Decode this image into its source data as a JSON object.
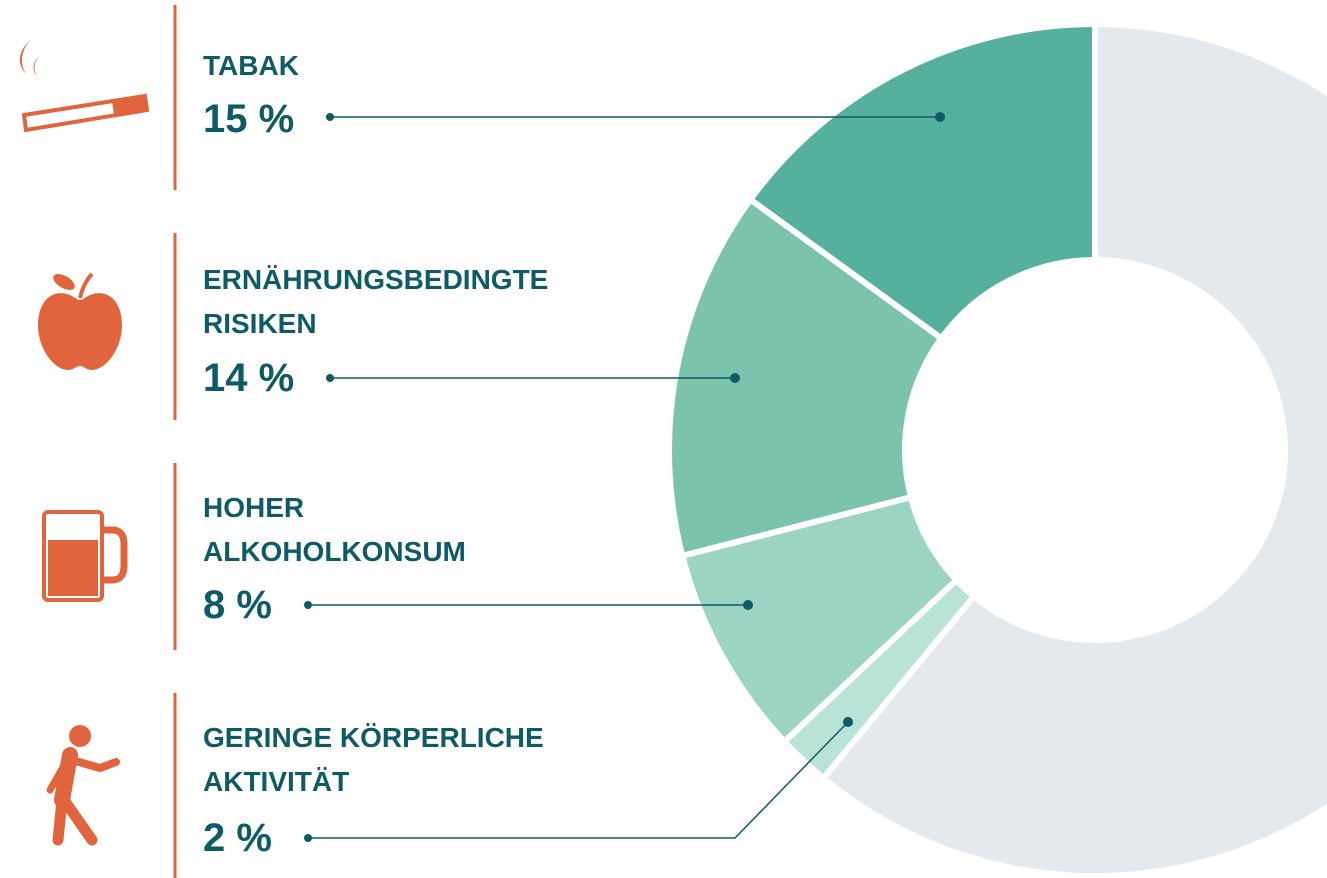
{
  "chart_data": {
    "type": "donut",
    "categories": [
      "TABAK",
      "ERNÄHRUNGSBEDINGTE\nRISIKEN",
      "HOHER\nALKOHOLKONSUM",
      "GERINGE KÖRPERLICHE\nAKTIVITÄT",
      null
    ],
    "values": [
      15,
      14,
      8,
      2,
      61
    ],
    "value_labels": [
      "15 %",
      "14 %",
      "8 %",
      "2 %",
      null
    ],
    "colors": [
      "#55b19d",
      "#7cc3ae",
      "#9bd4c2",
      "#b9e3d6",
      "#e3e9ed"
    ]
  }
}
